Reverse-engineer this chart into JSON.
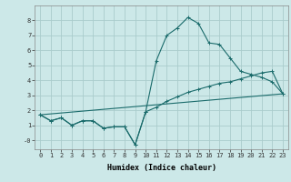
{
  "title": "",
  "xlabel": "Humidex (Indice chaleur)",
  "bg_color": "#cce8e8",
  "grid_color": "#aacccc",
  "line_color": "#1a6b6b",
  "line1_x": [
    0,
    1,
    2,
    3,
    4,
    5,
    6,
    7,
    8,
    9,
    10,
    11,
    12,
    13,
    14,
    15,
    16,
    17,
    18,
    19,
    20,
    21,
    22,
    23
  ],
  "line1_y": [
    1.7,
    1.3,
    1.5,
    1.0,
    1.3,
    1.3,
    0.8,
    0.9,
    0.9,
    -0.3,
    1.9,
    5.3,
    7.0,
    7.5,
    8.2,
    7.8,
    6.5,
    6.4,
    5.5,
    4.6,
    4.4,
    4.2,
    3.9,
    3.1
  ],
  "line2_x": [
    0,
    1,
    2,
    3,
    4,
    5,
    6,
    7,
    8,
    9,
    10,
    11,
    12,
    13,
    14,
    15,
    16,
    17,
    18,
    19,
    20,
    21,
    22,
    23
  ],
  "line2_y": [
    1.7,
    1.3,
    1.5,
    1.0,
    1.3,
    1.3,
    0.8,
    0.9,
    0.9,
    -0.3,
    1.9,
    2.2,
    2.6,
    2.9,
    3.2,
    3.4,
    3.6,
    3.8,
    3.9,
    4.1,
    4.3,
    4.5,
    4.6,
    3.1
  ],
  "line3_x": [
    0,
    23
  ],
  "line3_y": [
    1.7,
    3.1
  ],
  "xlim": [
    -0.5,
    23.5
  ],
  "ylim": [
    -0.6,
    9.0
  ],
  "xticks": [
    0,
    1,
    2,
    3,
    4,
    5,
    6,
    7,
    8,
    9,
    10,
    11,
    12,
    13,
    14,
    15,
    16,
    17,
    18,
    19,
    20,
    21,
    22,
    23
  ],
  "yticks": [
    0,
    1,
    2,
    3,
    4,
    5,
    6,
    7,
    8
  ],
  "ytick_labels": [
    "-0",
    "1",
    "2",
    "3",
    "4",
    "5",
    "6",
    "7",
    "8"
  ],
  "tick_fontsize": 5,
  "xlabel_fontsize": 6,
  "linewidth": 0.8,
  "markersize": 2.5
}
